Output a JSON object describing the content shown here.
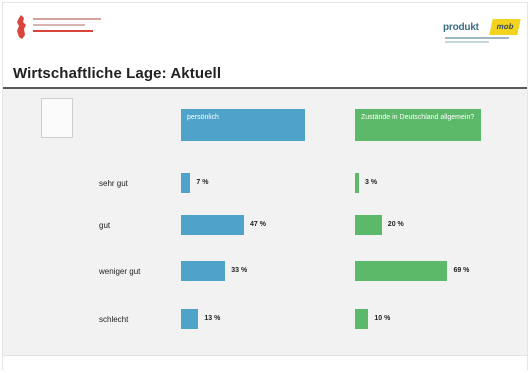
{
  "title": "Wirtschaftliche Lage: Aktuell",
  "colors": {
    "blue": "#4fa2c9",
    "green": "#5db96a",
    "accent_red": "#d9453a",
    "tag_yellow": "#f2d31d"
  },
  "logo_right": {
    "text": "produkt",
    "tag": "mob"
  },
  "footer": {
    "left": "",
    "right": "",
    "page": ""
  },
  "chart_data": {
    "type": "bar",
    "orientation": "horizontal",
    "categories": [
      "sehr gut",
      "gut",
      "weniger gut",
      "schlecht"
    ],
    "series": [
      {
        "name": "persönlich",
        "values": [
          7,
          47,
          33,
          13
        ],
        "labels": [
          "7 %",
          "47 %",
          "33 %",
          "13 %"
        ],
        "color": "#4fa2c9"
      },
      {
        "name": "Zustände in Deutschland allgemein?",
        "values": [
          3,
          20,
          69,
          10
        ],
        "labels": [
          "3 %",
          "20 %",
          "69 %",
          "10 %"
        ],
        "color": "#5db96a"
      }
    ],
    "value_unit": "%",
    "xlim": [
      0,
      100
    ],
    "legend": "top",
    "grid": false
  }
}
